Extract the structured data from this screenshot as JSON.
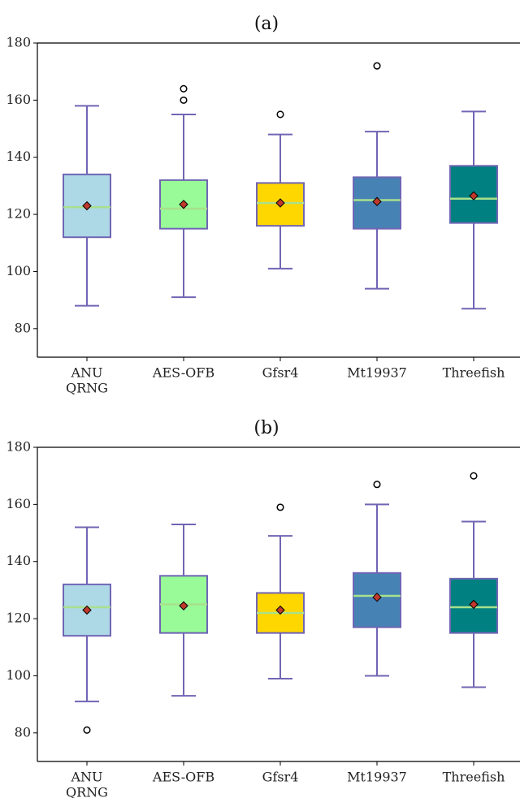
{
  "colors": {
    "whisker": "#7065B4",
    "median": "#A8E08C",
    "mean_marker": "#C0392B",
    "boxes": [
      "#ADD8E6",
      "#98FB98",
      "#FFD700",
      "#4682B4",
      "#008080"
    ]
  },
  "chart_data": [
    {
      "type": "box",
      "title": "(a)",
      "categories": [
        [
          "ANU",
          "QRNG"
        ],
        [
          "AES-OFB"
        ],
        [
          "Gfsr4"
        ],
        [
          "Mt19937"
        ],
        [
          "Threefish"
        ]
      ],
      "ylim": [
        70,
        180
      ],
      "yticks": [
        80,
        100,
        120,
        140,
        160,
        180
      ],
      "boxes": [
        {
          "whislo": 88,
          "q1": 112,
          "med": 122.5,
          "q3": 134,
          "whishi": 158,
          "mean": 123,
          "fliers": []
        },
        {
          "whislo": 91,
          "q1": 115,
          "med": 122,
          "q3": 132,
          "whishi": 155,
          "mean": 123.5,
          "fliers": [
            160,
            164
          ]
        },
        {
          "whislo": 101,
          "q1": 116,
          "med": 124,
          "q3": 131,
          "whishi": 148,
          "mean": 124,
          "fliers": [
            155
          ]
        },
        {
          "whislo": 94,
          "q1": 115,
          "med": 125,
          "q3": 133,
          "whishi": 149,
          "mean": 124.5,
          "fliers": [
            172
          ]
        },
        {
          "whislo": 87,
          "q1": 117,
          "med": 125.5,
          "q3": 137,
          "whishi": 156,
          "mean": 126.5,
          "fliers": []
        }
      ]
    },
    {
      "type": "box",
      "title": "(b)",
      "categories": [
        [
          "ANU",
          "QRNG"
        ],
        [
          "AES-OFB"
        ],
        [
          "Gfsr4"
        ],
        [
          "Mt19937"
        ],
        [
          "Threefish"
        ]
      ],
      "ylim": [
        70,
        180
      ],
      "yticks": [
        80,
        100,
        120,
        140,
        160,
        180
      ],
      "boxes": [
        {
          "whislo": 91,
          "q1": 114,
          "med": 124,
          "q3": 132,
          "whishi": 152,
          "mean": 123,
          "fliers": [
            81
          ]
        },
        {
          "whislo": 93,
          "q1": 115,
          "med": 125,
          "q3": 135,
          "whishi": 153,
          "mean": 124.5,
          "fliers": []
        },
        {
          "whislo": 99,
          "q1": 115,
          "med": 122,
          "q3": 129,
          "whishi": 149,
          "mean": 123,
          "fliers": [
            159
          ]
        },
        {
          "whislo": 100,
          "q1": 117,
          "med": 128,
          "q3": 136,
          "whishi": 160,
          "mean": 127.5,
          "fliers": [
            167
          ]
        },
        {
          "whislo": 96,
          "q1": 115,
          "med": 124,
          "q3": 134,
          "whishi": 154,
          "mean": 125,
          "fliers": [
            170
          ]
        }
      ]
    }
  ]
}
